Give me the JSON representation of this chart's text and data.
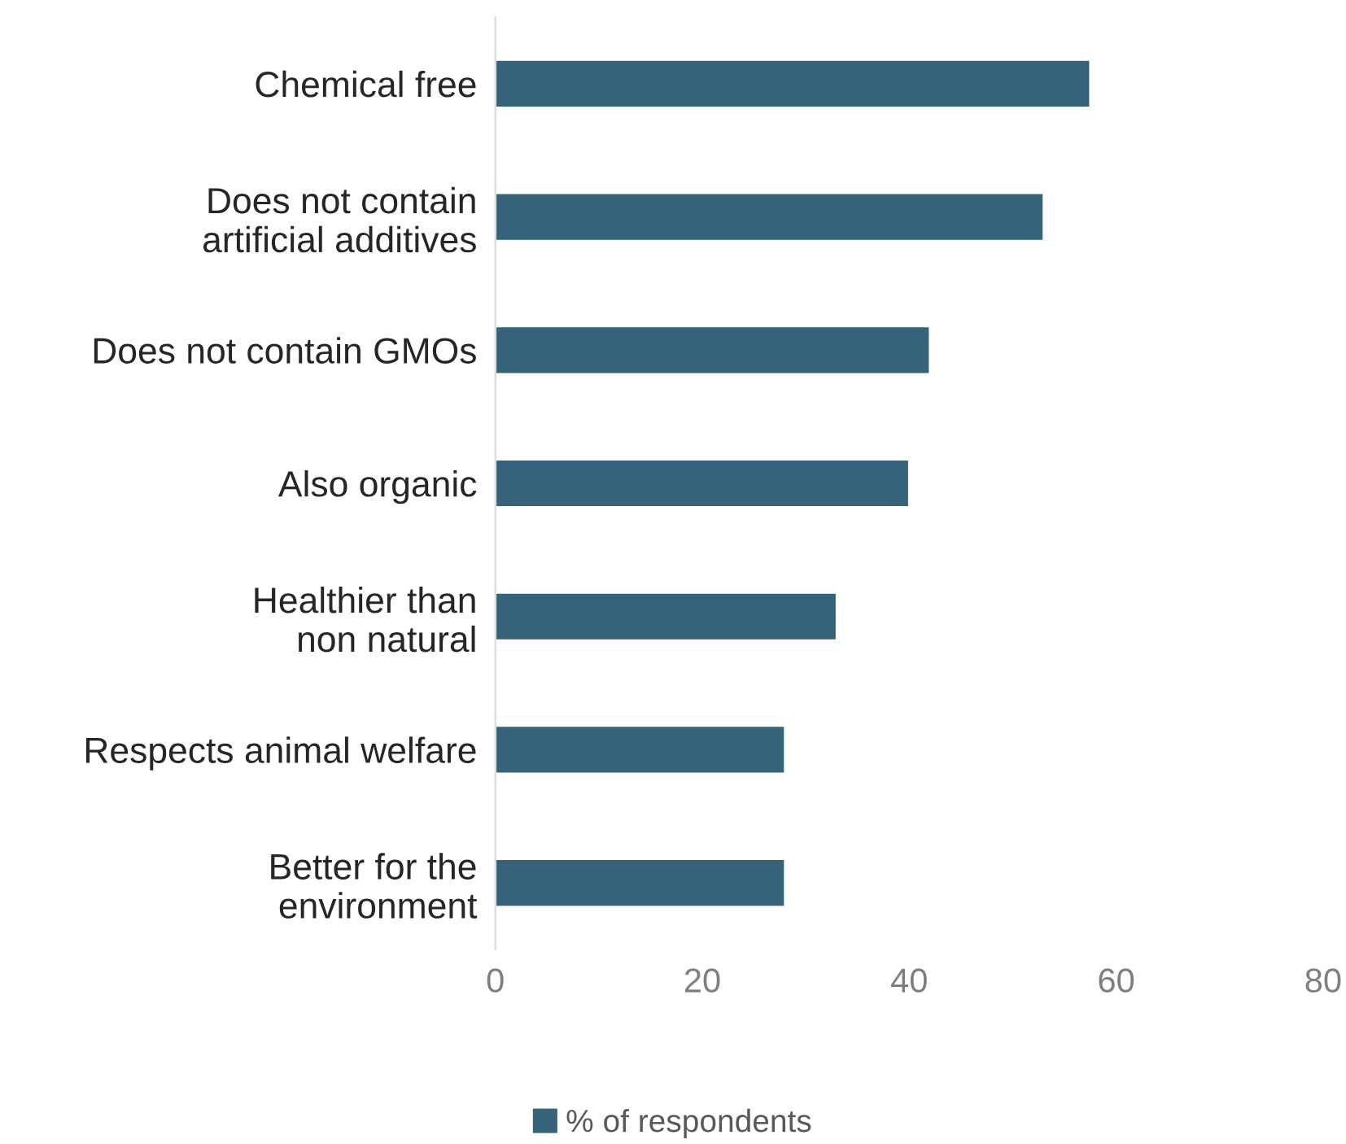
{
  "chart_data": {
    "type": "bar",
    "orientation": "horizontal",
    "categories": [
      "Chemical free",
      "Does not contain\nartificial additives",
      "Does not contain GMOs",
      "Also organic",
      "Healthier than\nnon natural",
      "Respects animal welfare",
      "Better for the\nenvironment"
    ],
    "series": [
      {
        "name": "% of respondents",
        "color": "#356379",
        "values": [
          57.5,
          53,
          42,
          40,
          33,
          28,
          28
        ]
      }
    ],
    "xlim": [
      0,
      80
    ],
    "xticks": [
      0,
      20,
      40,
      60,
      80
    ],
    "grid": false,
    "legend": "bottom"
  }
}
